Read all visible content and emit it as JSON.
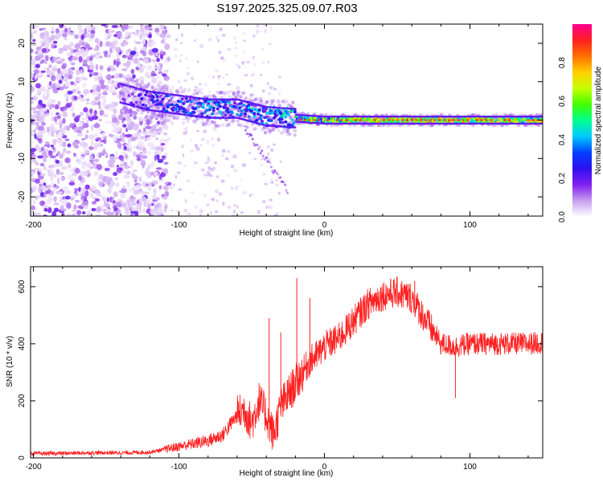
{
  "title": "S197.2025.325.09.07.R03",
  "chart_data": [
    {
      "type": "heatmap",
      "title": "S197.2025.325.09.07.R03",
      "xlabel": "Height of straight line (km)",
      "ylabel": "Frequency (Hz)",
      "xlim": [
        -202,
        150
      ],
      "ylim": [
        -25,
        25
      ],
      "xticks": [
        -200,
        -100,
        0,
        100
      ],
      "yticks": [
        -20,
        -10,
        0,
        10,
        20
      ],
      "colorbar": {
        "label": "Normalized spectral amplitude",
        "range": [
          0,
          1
        ],
        "ticks": [
          "0.0",
          "0.2",
          "0.4",
          "0.6",
          "0.8"
        ],
        "colors": [
          "#ffffff",
          "#c8a0f0",
          "#8020f0",
          "#3010f0",
          "#0040ff",
          "#00c8ff",
          "#00ff90",
          "#40ff00",
          "#c8ff00",
          "#ffd000",
          "#ff7000",
          "#ff2020",
          "#ff0090"
        ]
      },
      "ridge": {
        "description_points_x": [
          -140,
          -120,
          -100,
          -80,
          -60,
          -40,
          -20,
          0,
          50,
          100,
          150
        ],
        "frequency_hz": [
          7,
          5,
          4,
          3,
          3,
          1,
          0.5,
          0,
          0,
          0,
          0
        ],
        "amplitude": [
          0.15,
          0.35,
          0.4,
          0.45,
          0.45,
          0.45,
          0.55,
          0.75,
          0.85,
          0.85,
          0.8
        ]
      },
      "noise_region_x": [
        -202,
        -110
      ]
    },
    {
      "type": "line",
      "xlabel": "Height of straight line (km)",
      "ylabel": "SNR (10 * v/v)",
      "xlim": [
        -202,
        150
      ],
      "ylim": [
        0,
        670
      ],
      "xticks": [
        -200,
        -100,
        0,
        100
      ],
      "yticks": [
        0,
        200,
        400,
        600
      ],
      "color": "#ff2020",
      "series": [
        {
          "name": "SNR",
          "x": [
            -202,
            -180,
            -160,
            -140,
            -120,
            -110,
            -100,
            -90,
            -80,
            -70,
            -60,
            -55,
            -50,
            -45,
            -40,
            -35,
            -30,
            -25,
            -20,
            -15,
            -10,
            -5,
            0,
            10,
            20,
            30,
            40,
            50,
            60,
            70,
            80,
            90,
            100,
            110,
            120,
            130,
            140,
            150
          ],
          "values": [
            15,
            16,
            18,
            18,
            20,
            30,
            40,
            50,
            60,
            80,
            150,
            170,
            120,
            200,
            150,
            80,
            180,
            220,
            260,
            300,
            340,
            360,
            390,
            420,
            480,
            540,
            570,
            580,
            560,
            480,
            400,
            390,
            400,
            400,
            400,
            400,
            400,
            405
          ]
        }
      ],
      "annotations": {
        "spikes": [
          [
            -38,
            490
          ],
          [
            -30,
            440
          ],
          [
            -19,
            630
          ],
          [
            -10,
            560
          ],
          [
            62,
            620
          ],
          [
            90,
            210
          ]
        ]
      }
    }
  ]
}
